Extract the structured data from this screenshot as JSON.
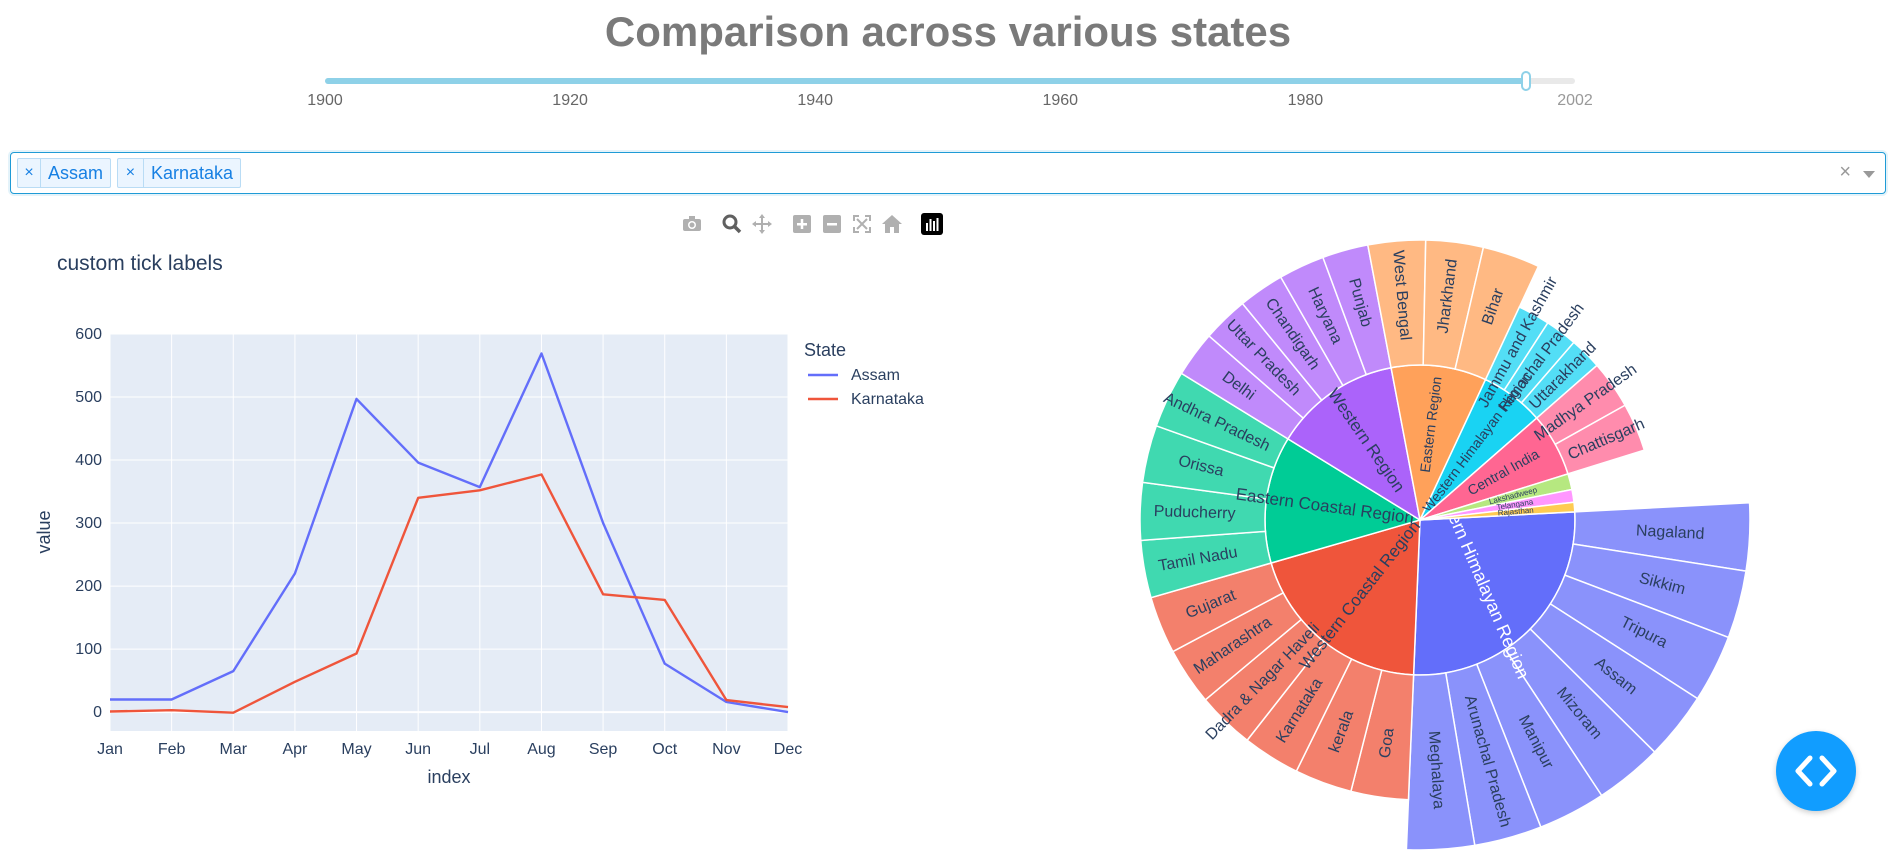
{
  "page": {
    "title": "Comparison across various states"
  },
  "slider": {
    "min": 1900,
    "max": 2002,
    "value": 1998,
    "marks": [
      "1900",
      "1920",
      "1940",
      "1960",
      "1980",
      "2002"
    ]
  },
  "dropdown": {
    "selected": [
      "Assam",
      "Karnataka"
    ],
    "remove_glyph": "×",
    "clear_glyph": "×"
  },
  "modebar": {
    "icons": [
      "camera-icon",
      "zoom-icon",
      "pan-icon",
      "zoom-in-icon",
      "zoom-out-icon",
      "autoscale-icon",
      "reset-axes-icon",
      "plotly-logo-icon"
    ]
  },
  "colors": {
    "accent": "#119dff",
    "assam": "#636efa",
    "karnataka": "#ef553b",
    "plot_bg": "#e5ecf6",
    "title_gray": "#7a7a7a"
  },
  "chart_data": [
    {
      "type": "line",
      "title": "custom tick labels",
      "xlabel": "index",
      "ylabel": "value",
      "categories": [
        "Jan",
        "Feb",
        "Mar",
        "Apr",
        "May",
        "Jun",
        "Jul",
        "Aug",
        "Sep",
        "Oct",
        "Nov",
        "Dec"
      ],
      "ylim": [
        -30,
        600
      ],
      "yticks": [
        "0",
        "100",
        "200",
        "300",
        "400",
        "500",
        "600"
      ],
      "legend_title": "State",
      "legend_placement": "right",
      "grid": true,
      "series": [
        {
          "name": "Assam",
          "color": "#636efa",
          "values": [
            20,
            20,
            65,
            220,
            497,
            396,
            357,
            569,
            300,
            77,
            16,
            0
          ]
        },
        {
          "name": "Karnataka",
          "color": "#ef553b",
          "values": [
            1,
            3,
            -1,
            48,
            93,
            340,
            352,
            377,
            187,
            178,
            19,
            8
          ]
        }
      ]
    },
    {
      "type": "sunburst",
      "regions": [
        {
          "name": "Eastern Himalayan Region",
          "color": "#636efa",
          "value": 8,
          "children": [
            "Nagaland",
            "Sikkim",
            "Tripura",
            "Assam",
            "Mizoram",
            "Manipur",
            "Arunachal Pradesh",
            "Meghalaya"
          ]
        },
        {
          "name": "Western Coastal Region",
          "color": "#ef553b",
          "value": 6,
          "children": [
            "Goa",
            "kerala",
            "Karnataka",
            "Dadra & Nagar Haveli",
            "Maharashtra",
            "Gujarat"
          ]
        },
        {
          "name": "Eastern Coastal Region",
          "color": "#00cc96",
          "value": 4,
          "children": [
            "Tamil Nadu",
            "Puducherry",
            "Orissa",
            "Andhra Pradesh"
          ]
        },
        {
          "name": "Western Region",
          "color": "#ab63fa",
          "value": 4,
          "children": [
            "Delhi",
            "Uttar Pradesh",
            "Chandigarh",
            "Haryana",
            "Punjab"
          ]
        },
        {
          "name": "Eastern Region",
          "color": "#ffa15a",
          "value": 3,
          "children": [
            "West Bengal",
            "Jharkhand",
            "Bihar"
          ]
        },
        {
          "name": "Western Himalayan Region",
          "color": "#19d3f3",
          "value": 2,
          "children": [
            "Jammu and Kashmir",
            "Himachal Pradesh",
            "Uttarakhand"
          ]
        },
        {
          "name": "Central India",
          "color": "#ff6692",
          "value": 2,
          "children": [
            "Madhya Pradesh",
            "Chattisgarh"
          ]
        },
        {
          "name": "Lakshadweep",
          "color": "#b6e880",
          "value": 0.5,
          "children": []
        },
        {
          "name": "Telangana",
          "color": "#ff97ff",
          "value": 0.4,
          "children": []
        },
        {
          "name": "Rajasthan",
          "color": "#fecb52",
          "value": 0.3,
          "children": []
        }
      ]
    }
  ]
}
